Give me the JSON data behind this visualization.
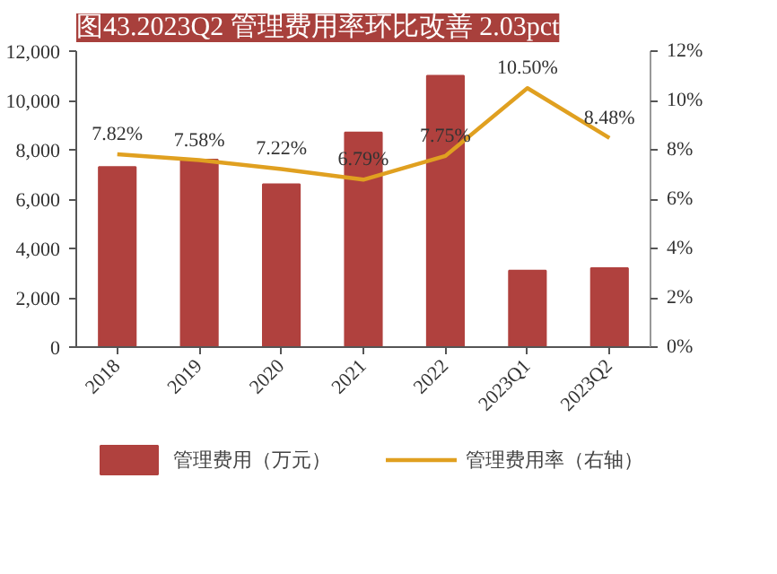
{
  "chart_data": {
    "type": "bar",
    "title": "图43.2023Q2 管理费用率环比改善 2.03pct",
    "categories": [
      "2018",
      "2019",
      "2020",
      "2021",
      "2022",
      "2023Q1",
      "2023Q2"
    ],
    "series": [
      {
        "name": "管理费用（万元）",
        "color": "#b0413e",
        "values": [
          7300,
          7600,
          6600,
          8700,
          11000,
          3100,
          3200
        ]
      },
      {
        "name": "管理费用率（右轴）",
        "type": "line",
        "axis": "y2",
        "color": "#e0a020",
        "values": [
          7.82,
          7.58,
          7.22,
          6.79,
          7.75,
          10.5,
          8.48
        ],
        "value_labels": [
          "7.82%",
          "7.58%",
          "7.22%",
          "6.79%",
          "7.75%",
          "10.50%",
          "8.48%"
        ]
      }
    ],
    "ylim": [
      0,
      12000
    ],
    "yticks": [
      {
        "value": 0,
        "label": "0"
      },
      {
        "value": 2000,
        "label": "2,000"
      },
      {
        "value": 4000,
        "label": "4,000"
      },
      {
        "value": 6000,
        "label": "6,000"
      },
      {
        "value": 8000,
        "label": "8,000"
      },
      {
        "value": 10000,
        "label": "10,000"
      },
      {
        "value": 12000,
        "label": "12,000"
      }
    ],
    "y2lim": [
      0,
      12
    ],
    "y2ticks": [
      {
        "value": 0,
        "label": "0%"
      },
      {
        "value": 2,
        "label": "2%"
      },
      {
        "value": 4,
        "label": "4%"
      },
      {
        "value": 6,
        "label": "6%"
      },
      {
        "value": 8,
        "label": "8%"
      },
      {
        "value": 10,
        "label": "10%"
      },
      {
        "value": 12,
        "label": "12%"
      }
    ],
    "grid": false,
    "legend": "bottom"
  }
}
